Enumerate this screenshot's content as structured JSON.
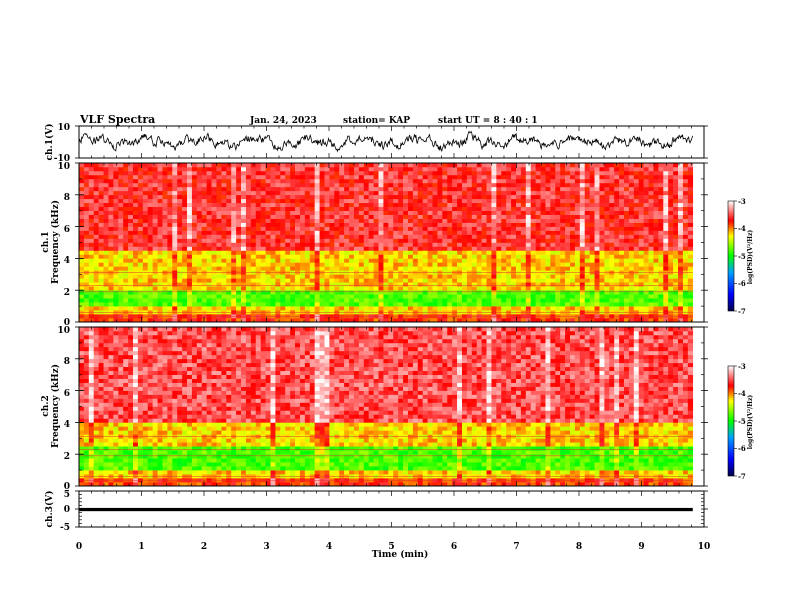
{
  "header": {
    "title": "VLF Spectra",
    "date": "Jan. 24, 2023",
    "station": "station= KAP",
    "start_time": "start  UT =   8  : 40 : 1"
  },
  "chart_data": [
    {
      "type": "line",
      "id": "ch1-waveform",
      "ylabel": "ch.1(V)",
      "ylim": [
        -10,
        10
      ],
      "yticks": [
        {
          "value": 10,
          "label": "10"
        },
        {
          "value": -10,
          "label": "-10"
        }
      ],
      "x_range_min": [
        0,
        9.82
      ],
      "description_note": "noisy waveform roughly between -6 and +9 V"
    },
    {
      "type": "heatmap",
      "id": "ch1-spectrogram",
      "ylabel_line1": "ch.1",
      "ylabel_line2": "Frequency  (kHz)",
      "ylim": [
        0,
        10
      ],
      "yticks": [
        {
          "value": 0,
          "label": "0"
        },
        {
          "value": 2,
          "label": "2"
        },
        {
          "value": 4,
          "label": "4"
        },
        {
          "value": 6,
          "label": "6"
        },
        {
          "value": 8,
          "label": "8"
        },
        {
          "value": 10,
          "label": "10"
        }
      ],
      "x_range_min": [
        0,
        9.82
      ],
      "levels_log_psd": [
        {
          "f_min": 0.0,
          "f_max": 0.3,
          "value": -3.8
        },
        {
          "f_min": 0.3,
          "f_max": 0.9,
          "value": -4.2
        },
        {
          "f_min": 0.9,
          "f_max": 2.0,
          "value": -4.8
        },
        {
          "f_min": 2.0,
          "f_max": 4.5,
          "value": -4.2
        },
        {
          "f_min": 4.5,
          "f_max": 10.0,
          "value": -3.6
        }
      ],
      "colorbar": {
        "label": "log(PSD)(V²/Hz)",
        "range": [
          -7,
          -3
        ],
        "ticks": [
          {
            "value": -3,
            "label": "-3"
          },
          {
            "value": -4,
            "label": "-4"
          },
          {
            "value": -5,
            "label": "-5"
          },
          {
            "value": -6,
            "label": "-6"
          },
          {
            "value": -7,
            "label": "-7"
          }
        ]
      }
    },
    {
      "type": "heatmap",
      "id": "ch2-spectrogram",
      "ylabel_line1": "ch.2",
      "ylabel_line2": "Frequency  (kHz)",
      "ylim": [
        0,
        10
      ],
      "yticks": [
        {
          "value": 0,
          "label": "0"
        },
        {
          "value": 2,
          "label": "2"
        },
        {
          "value": 4,
          "label": "4"
        },
        {
          "value": 6,
          "label": "6"
        },
        {
          "value": 8,
          "label": "8"
        },
        {
          "value": 10,
          "label": "10"
        }
      ],
      "x_range_min": [
        0,
        9.82
      ],
      "levels_log_psd": [
        {
          "f_min": 0.0,
          "f_max": 0.3,
          "value": -3.8
        },
        {
          "f_min": 0.3,
          "f_max": 0.9,
          "value": -4.2
        },
        {
          "f_min": 0.9,
          "f_max": 2.5,
          "value": -4.8
        },
        {
          "f_min": 2.5,
          "f_max": 3.8,
          "value": -4.2
        },
        {
          "f_min": 3.8,
          "f_max": 10.0,
          "value": -3.5
        }
      ],
      "colorbar": {
        "label": "log(PSD)(V²/Hz)",
        "range": [
          -7,
          -3
        ],
        "ticks": [
          {
            "value": -3,
            "label": "-3"
          },
          {
            "value": -4,
            "label": "-4"
          },
          {
            "value": -5,
            "label": "-5"
          },
          {
            "value": -6,
            "label": "-6"
          },
          {
            "value": -7,
            "label": "-7"
          }
        ]
      }
    },
    {
      "type": "line",
      "id": "ch3-waveform",
      "ylabel": "ch.3(V)",
      "ylim": [
        -5,
        5
      ],
      "yticks": [
        {
          "value": 5,
          "label": "5"
        },
        {
          "value": 0,
          "label": "0"
        },
        {
          "value": -5,
          "label": "-5"
        }
      ],
      "x_range_min": [
        0,
        9.82
      ],
      "band": [
        -0.6,
        0.3
      ]
    }
  ],
  "x_axis": {
    "label": "Time  (min)",
    "range": [
      0,
      10
    ],
    "ticks": [
      {
        "value": 0,
        "label": "0"
      },
      {
        "value": 1,
        "label": "1"
      },
      {
        "value": 2,
        "label": "2"
      },
      {
        "value": 3,
        "label": "3"
      },
      {
        "value": 4,
        "label": "4"
      },
      {
        "value": 5,
        "label": "5"
      },
      {
        "value": 6,
        "label": "6"
      },
      {
        "value": 7,
        "label": "7"
      },
      {
        "value": 8,
        "label": "8"
      },
      {
        "value": 9,
        "label": "9"
      },
      {
        "value": 10,
        "label": "10"
      }
    ]
  },
  "colors": {
    "axis": "#000000",
    "trace": "#000000",
    "colormap": [
      "#00004a",
      "#0000ff",
      "#00a0ff",
      "#00ff00",
      "#ffff00",
      "#ff0000",
      "#ffffff"
    ]
  }
}
